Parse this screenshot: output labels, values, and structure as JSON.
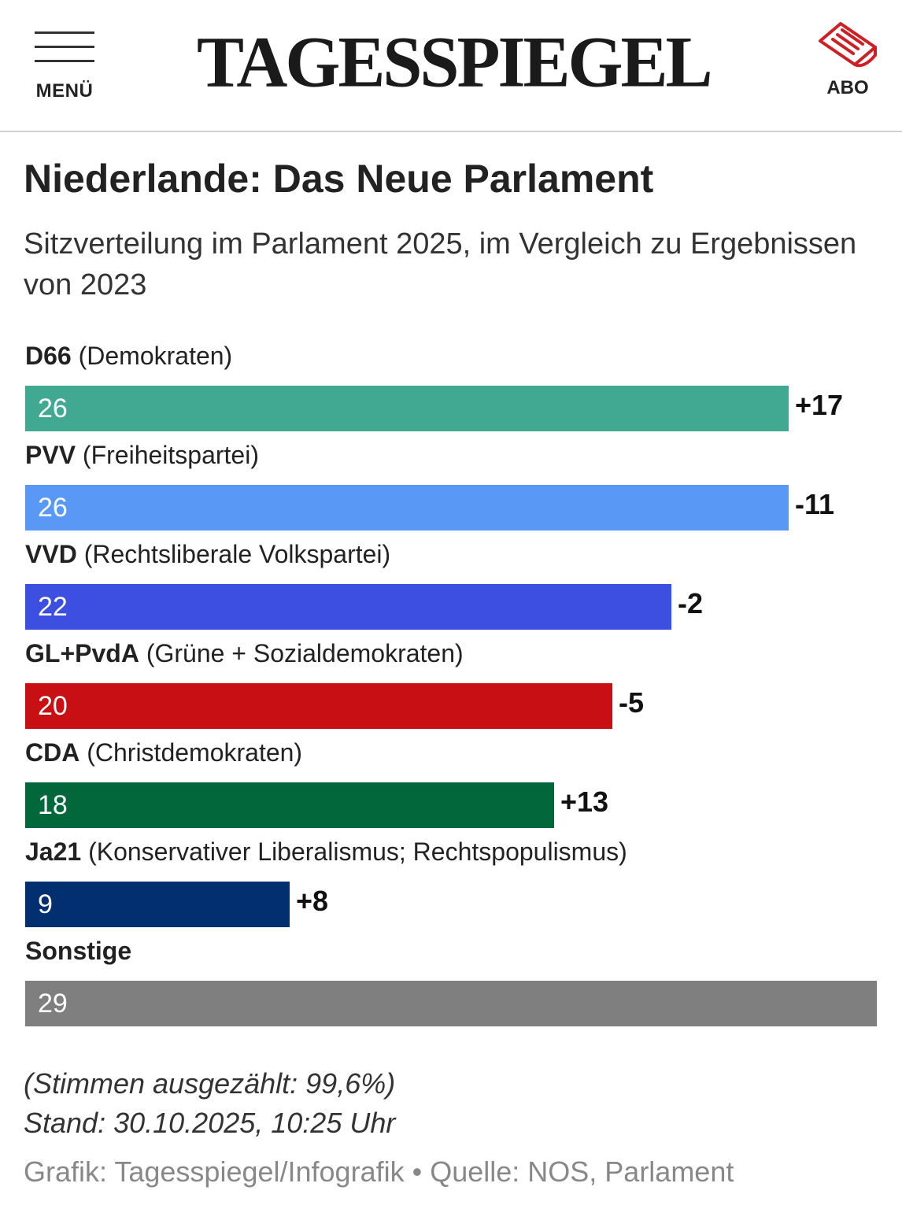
{
  "header": {
    "menu_label": "MENÜ",
    "logo": "TAGESSPIEGEL",
    "abo_label": "ABO"
  },
  "title": "Niederlande: Das Neue Parlament",
  "subtitle": "Sitzverteilung im Parlament 2025, im Vergleich zu Ergebnissen von 2023",
  "chart_data": {
    "type": "bar",
    "orientation": "horizontal",
    "title": "Niederlande: Das Neue Parlament",
    "xlabel": "",
    "ylabel": "",
    "xlim": [
      0,
      29
    ],
    "categories": [
      "D66",
      "PVV",
      "VVD",
      "GL+PvdA",
      "CDA",
      "Ja21",
      "Sonstige"
    ],
    "descriptions": [
      "(Demokraten)",
      "(Freiheitspartei)",
      "(Rechtsliberale Volkspartei)",
      "(Grüne + Sozialdemokraten)",
      "(Christdemokraten)",
      "(Konservativer Liberalismus; Rechtspopulismus)",
      ""
    ],
    "values": [
      26,
      26,
      22,
      20,
      18,
      9,
      29
    ],
    "changes": [
      "+17",
      "-11",
      "-2",
      "-5",
      "+13",
      "+8",
      ""
    ],
    "colors": [
      "#41a892",
      "#5a98f5",
      "#3c4fe0",
      "#c81014",
      "#02673b",
      "#022f70",
      "#7f7f7f"
    ]
  },
  "footer": {
    "counted": "(Stimmen ausgezählt: 99,6%)",
    "stand": "Stand: 30.10.2025, 10:25 Uhr",
    "source": "Grafik: Tagesspiegel/Infografik • Quelle: NOS, Parlament"
  }
}
